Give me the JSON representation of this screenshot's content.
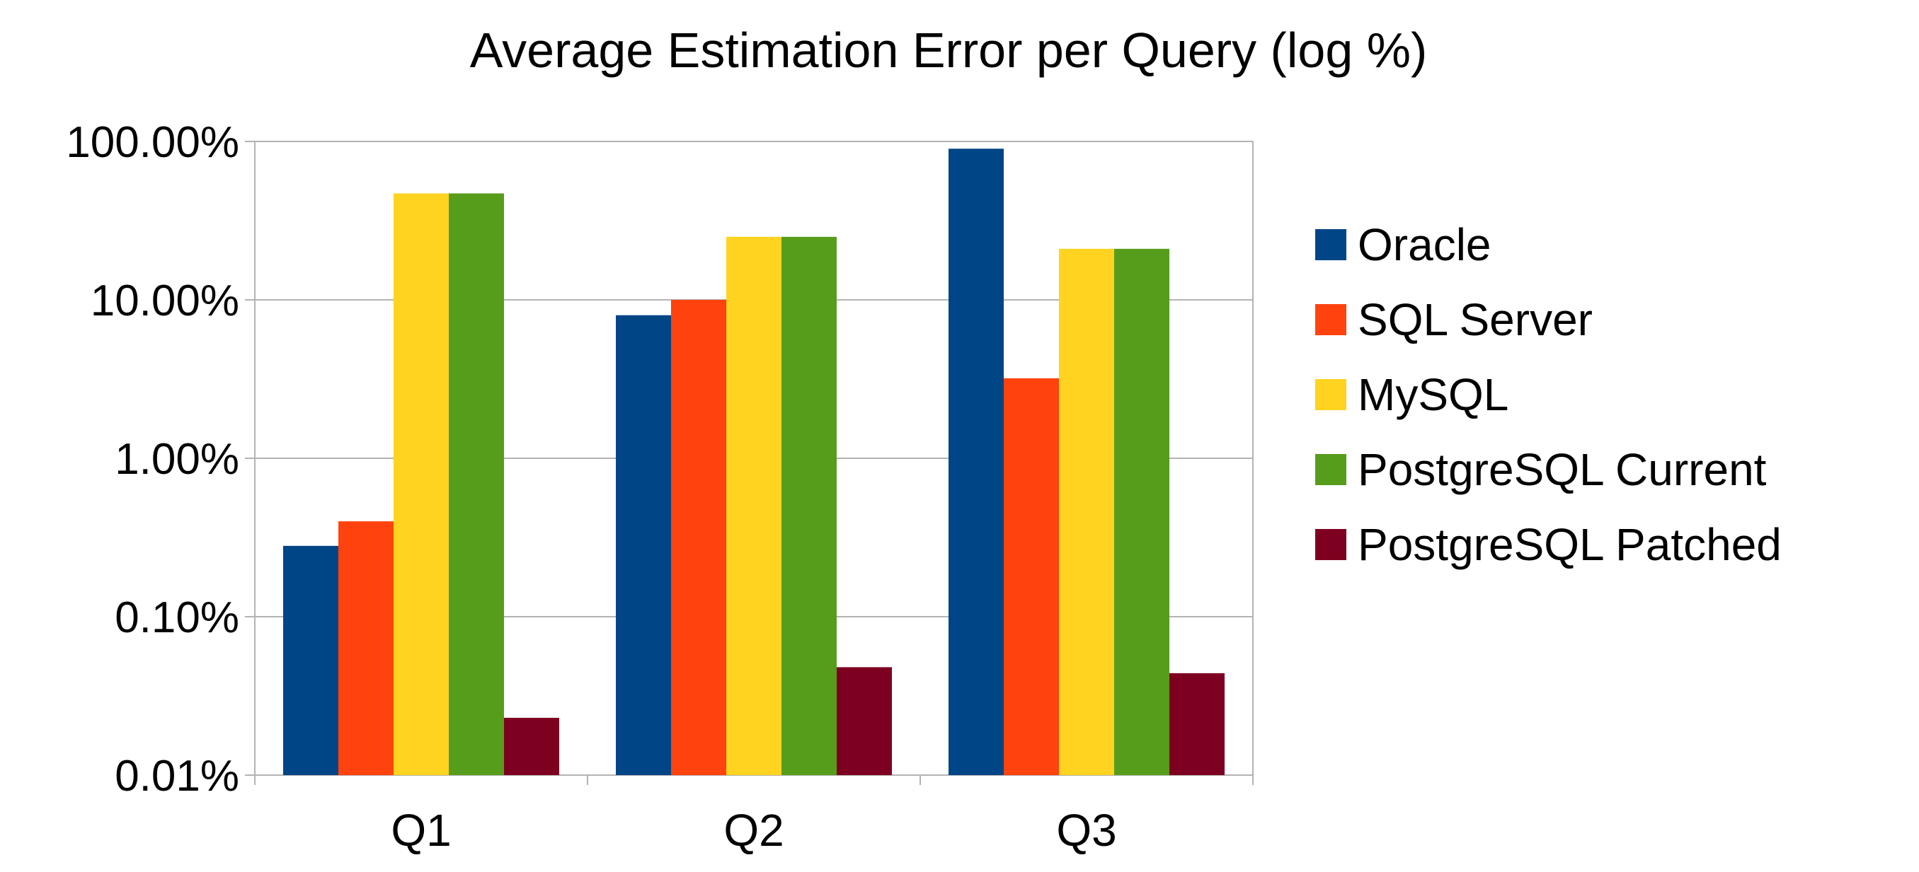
{
  "chart_data": {
    "type": "bar",
    "title": "Average Estimation Error per Query (log %)",
    "xlabel": "",
    "ylabel": "",
    "yscale": "log",
    "ylim": [
      0.01,
      100
    ],
    "yticks": [
      "100.00%",
      "10.00%",
      "1.00%",
      "0.10%",
      "0.01%"
    ],
    "categories": [
      "Q1",
      "Q2",
      "Q3"
    ],
    "series": [
      {
        "name": "Oracle",
        "color": "#004586",
        "values": [
          0.28,
          8.0,
          90.0
        ]
      },
      {
        "name": "SQL Server",
        "color": "#ff420e",
        "values": [
          0.4,
          10.0,
          3.2
        ]
      },
      {
        "name": "MySQL",
        "color": "#ffd320",
        "values": [
          47.0,
          25.0,
          21.0
        ]
      },
      {
        "name": "PostgreSQL Current",
        "color": "#579d1c",
        "values": [
          47.0,
          25.0,
          21.0
        ]
      },
      {
        "name": "PostgreSQL Patched",
        "color": "#7e0021",
        "values": [
          0.023,
          0.048,
          0.044
        ]
      }
    ],
    "grid": true,
    "legend": "right"
  }
}
